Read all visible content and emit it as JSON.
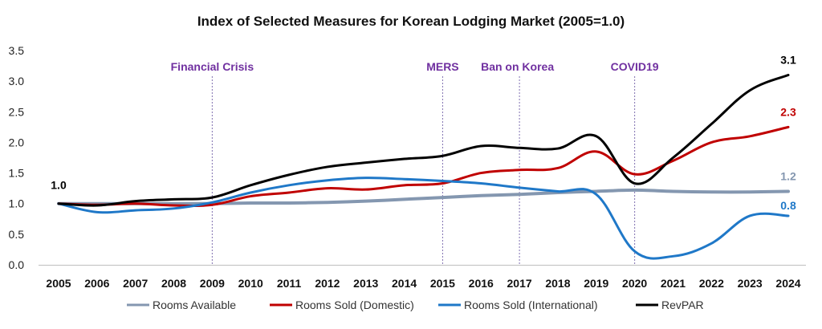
{
  "chart_data": {
    "type": "line",
    "title": "Index of Selected Measures for Korean Lodging Market (2005=1.0)",
    "xlabel": "",
    "ylabel": "",
    "x": [
      2005,
      2006,
      2007,
      2008,
      2009,
      2010,
      2011,
      2012,
      2013,
      2014,
      2015,
      2016,
      2017,
      2018,
      2019,
      2020,
      2021,
      2022,
      2023,
      2024
    ],
    "ylim": [
      0.0,
      3.5
    ],
    "yticks": [
      "0.0",
      "0.5",
      "1.0",
      "1.5",
      "2.0",
      "2.5",
      "3.0",
      "3.5"
    ],
    "grid": false,
    "legend_position": "bottom",
    "series": [
      {
        "name": "Rooms Available",
        "color": "#8497b0",
        "values": [
          1.0,
          1.0,
          1.0,
          1.0,
          1.0,
          1.01,
          1.01,
          1.02,
          1.04,
          1.07,
          1.1,
          1.13,
          1.15,
          1.18,
          1.2,
          1.22,
          1.2,
          1.19,
          1.19,
          1.2
        ],
        "end_label": "1.2"
      },
      {
        "name": "Rooms Sold (Domestic)",
        "color": "#c00000",
        "values": [
          1.0,
          0.98,
          1.0,
          0.97,
          0.98,
          1.12,
          1.18,
          1.25,
          1.23,
          1.3,
          1.33,
          1.5,
          1.55,
          1.58,
          1.85,
          1.48,
          1.7,
          2.0,
          2.1,
          2.25
        ],
        "end_label": "2.3"
      },
      {
        "name": "Rooms Sold (International)",
        "color": "#1f78c8",
        "values": [
          1.0,
          0.86,
          0.89,
          0.92,
          1.02,
          1.18,
          1.3,
          1.38,
          1.42,
          1.4,
          1.37,
          1.33,
          1.26,
          1.2,
          1.15,
          0.22,
          0.14,
          0.35,
          0.8,
          0.8
        ],
        "end_label": "0.8"
      },
      {
        "name": "RevPAR",
        "color": "#000000",
        "values": [
          1.0,
          0.97,
          1.04,
          1.07,
          1.1,
          1.3,
          1.47,
          1.6,
          1.67,
          1.73,
          1.78,
          1.94,
          1.91,
          1.9,
          2.1,
          1.33,
          1.75,
          2.3,
          2.85,
          3.1
        ],
        "end_label": "3.1"
      }
    ],
    "start_label": "1.0",
    "annotations": [
      {
        "x": 2009,
        "text": "Financial Crisis"
      },
      {
        "x": 2015,
        "text": "MERS"
      },
      {
        "x": 2017,
        "text": "Ban on Korea"
      },
      {
        "x": 2020,
        "text": "COVID19"
      }
    ]
  }
}
